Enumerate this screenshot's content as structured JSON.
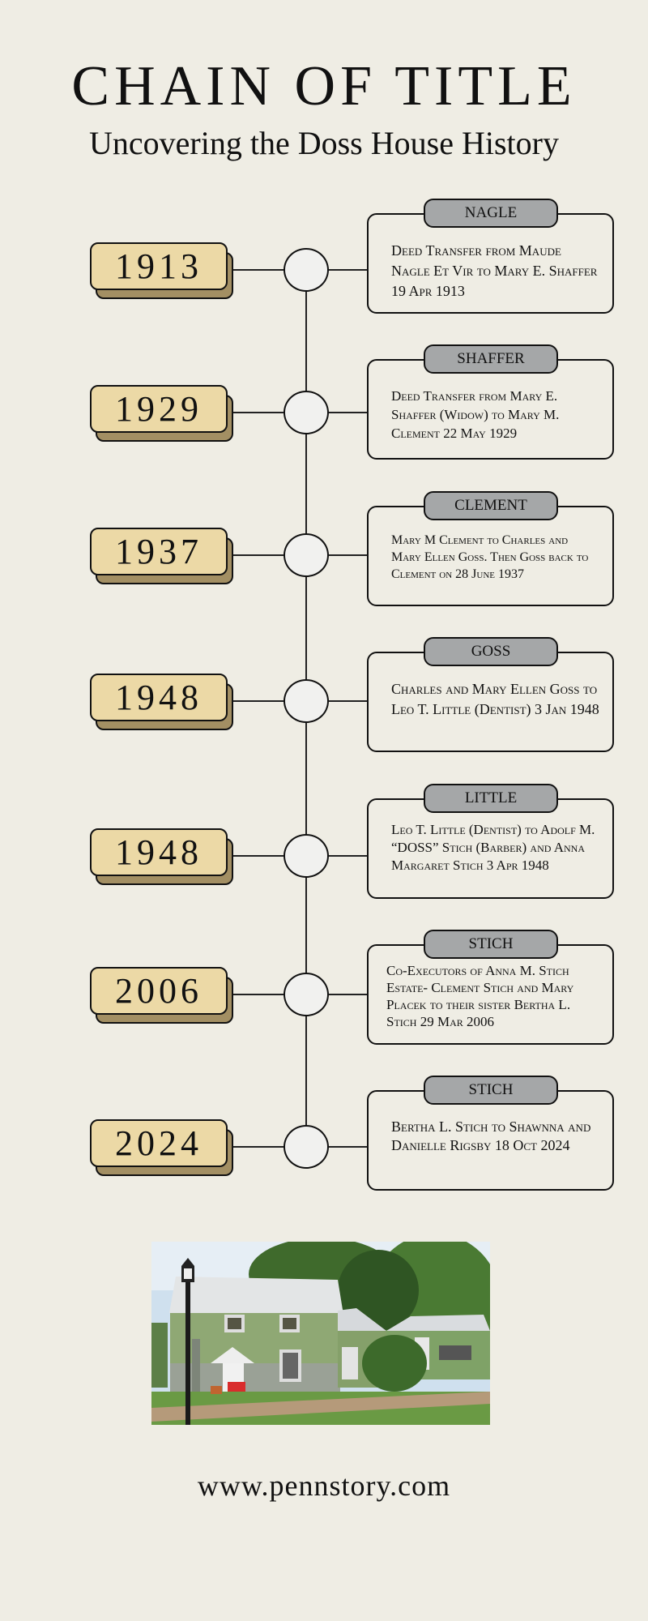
{
  "header": {
    "title": "CHAIN OF TITLE",
    "subtitle": "Uncovering the Doss House History"
  },
  "colors": {
    "background": "#efede4",
    "year_fill": "#ecd9a6",
    "year_shadow": "#a38f63",
    "tag_fill": "#a5a7a8",
    "node_fill": "#f1f1ef"
  },
  "timeline": [
    {
      "year": "1913",
      "name": "NAGLE",
      "text": "Deed Transfer from Maude Nagle Et Vir to Mary E. Shaffer 19 Apr 1913"
    },
    {
      "year": "1929",
      "name": "SHAFFER",
      "text": "Deed Transfer from Mary E. Shaffer (Widow) to Mary M. Clement 22 May 1929"
    },
    {
      "year": "1937",
      "name": "CLEMENT",
      "text": "Mary M Clement to Charles and Mary Ellen Goss. Then Goss back to Clement on 28 June 1937"
    },
    {
      "year": "1948",
      "name": "GOSS",
      "text": "Charles and Mary Ellen Goss to Leo T. Little (Dentist) 3 Jan 1948"
    },
    {
      "year": "1948",
      "name": "LITTLE",
      "text": "Leo T. Little (Dentist) to Adolf M. “DOSS” Stich (Barber) and Anna Margaret Stich 3 Apr 1948"
    },
    {
      "year": "2006",
      "name": "STICH",
      "text": "Co-Executors of Anna M. Stich Estate- Clement Stich and Mary Placek to their sister Bertha L. Stich 29 Mar 2006"
    },
    {
      "year": "2024",
      "name": "STICH",
      "text": "Bertha L. Stich to Shawnna and Danielle Rigsby 18 Oct 2024"
    }
  ],
  "footer": {
    "url": "www.pennstory.com"
  }
}
